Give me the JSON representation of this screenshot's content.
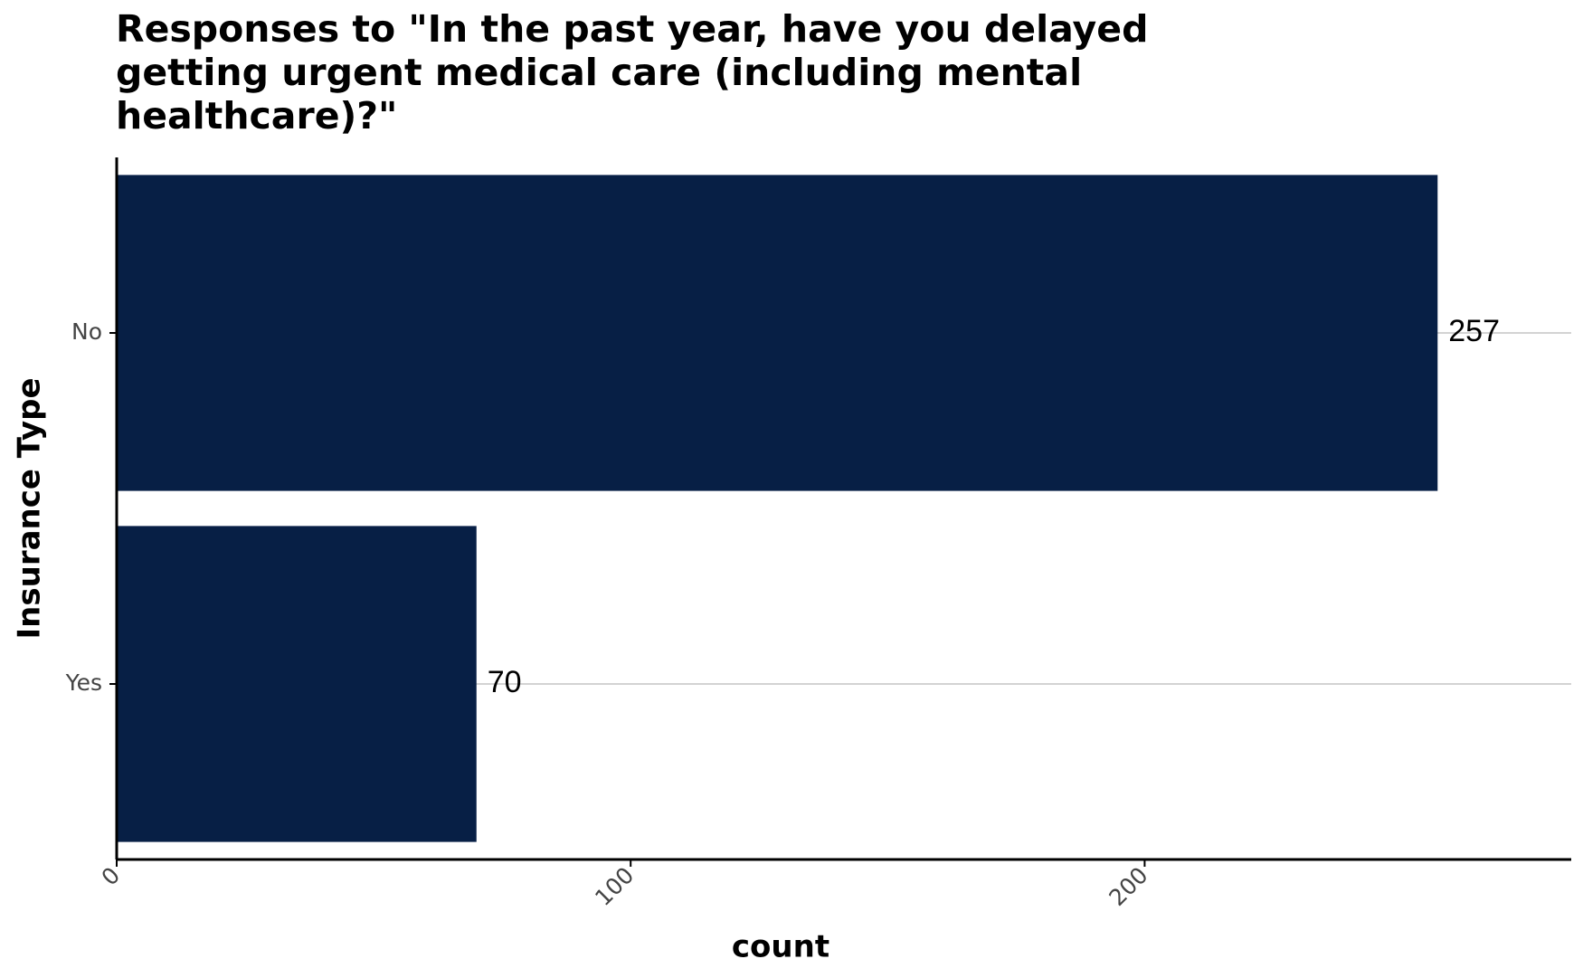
{
  "chart_data": {
    "type": "barh",
    "title": "Responses to \"In the past year, have you delayed getting urgent medical care (including mental healthcare)?\"",
    "x_label": "count",
    "y_label": "Insurance Type",
    "categories": [
      "No",
      "Yes"
    ],
    "values": [
      257,
      70
    ],
    "color": "#071f45",
    "xlim": [
      0,
      283
    ],
    "xticks": [
      0,
      100,
      200
    ],
    "grid": true
  }
}
